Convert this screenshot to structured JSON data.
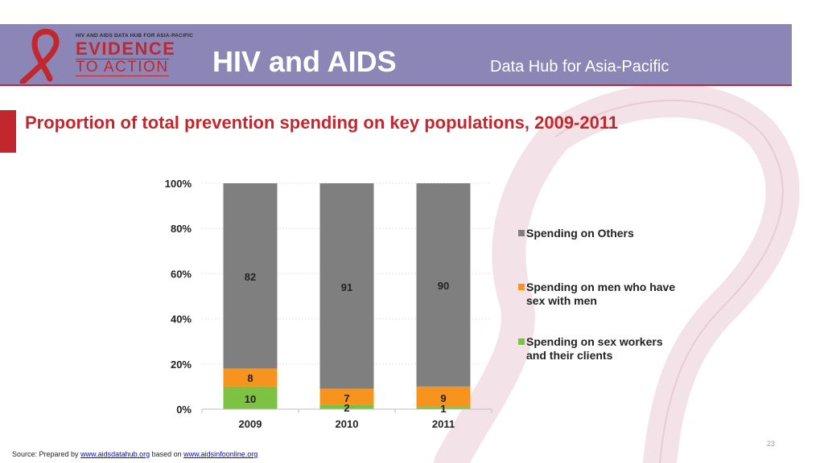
{
  "header": {
    "logo_small_text": "HIV AND AIDS DATA HUB FOR ASIA-PACIFIC",
    "logo_line1": "EVIDENCE",
    "logo_line2": "TO ACTION",
    "title": "HIV and AIDS",
    "subtitle": "Data Hub for Asia-Pacific",
    "band_color": "#8b86b5",
    "brand_color": "#c1272d"
  },
  "slide": {
    "title": "Proportion of total prevention spending on key populations, 2009-2011"
  },
  "chart_data": {
    "type": "bar",
    "stacked": true,
    "categories": [
      "2009",
      "2010",
      "2011"
    ],
    "series": [
      {
        "name": "Spending on sex workers and their clients",
        "values": [
          10,
          2,
          1
        ],
        "color": "#7dc242"
      },
      {
        "name": "Spending on men who have sex with men",
        "values": [
          8,
          7,
          9
        ],
        "color": "#f7941d"
      },
      {
        "name": "Spending on Others",
        "values": [
          82,
          91,
          90
        ],
        "color": "#7f7f7f"
      }
    ],
    "ylim": [
      0,
      100
    ],
    "yticks": [
      "0%",
      "20%",
      "40%",
      "60%",
      "80%",
      "100%"
    ],
    "legend_order": [
      "Spending on Others",
      "Spending on men who have sex with men",
      "Spending on sex workers and their clients"
    ],
    "legend_position": "right"
  },
  "footer": {
    "prefix": "Source: Prepared by ",
    "link1": "www.aidsdatahub.org",
    "middle": " based on ",
    "link2": "www.aidsinfoonline.org"
  },
  "page_number": "23"
}
